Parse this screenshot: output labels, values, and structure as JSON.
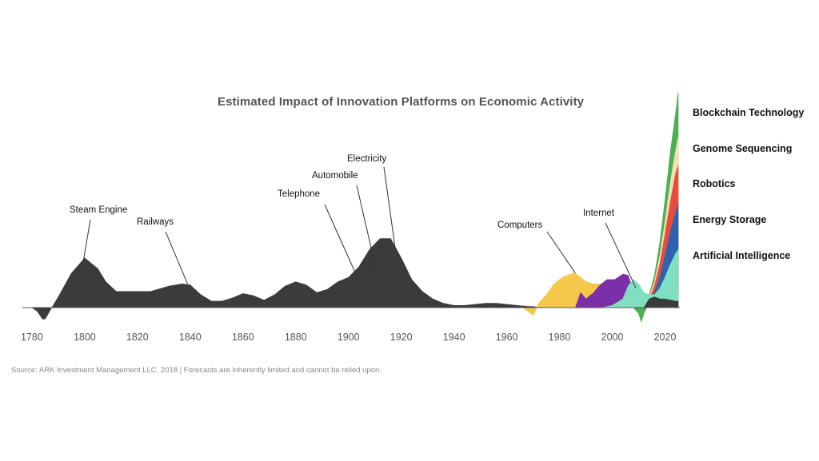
{
  "chart_data": {
    "type": "area",
    "title": "Estimated Impact of Innovation Platforms on Economic Activity",
    "source": "Source: ARK Investment Management LLC, 2018 | Forecasts are inherently limited and cannot be relied upon.",
    "x_ticks": [
      "1780",
      "1800",
      "1820",
      "1840",
      "1860",
      "1880",
      "1900",
      "1920",
      "1940",
      "1960",
      "1980",
      "2000",
      "2020"
    ],
    "xlim": [
      1777,
      2025
    ],
    "ylim": [
      -2,
      10
    ],
    "legend_position": "right",
    "legend": [
      "Blockchain Technology",
      "Genome Sequencing",
      "Robotics",
      "Energy Storage",
      "Artificial Intelligence"
    ],
    "annotations": [
      {
        "text": "Steam Engine",
        "year": 1799,
        "value": 1.8
      },
      {
        "text": "Railways",
        "year": 1839,
        "value": 1.1
      },
      {
        "text": "Telephone",
        "year": 1903,
        "value": 1.5
      },
      {
        "text": "Automobile",
        "year": 1911,
        "value": 1.5
      },
      {
        "text": "Electricity",
        "year": 1918,
        "value": 2.5
      },
      {
        "text": "Computers",
        "year": 1986,
        "value": 1.6
      },
      {
        "text": "Internet",
        "year": 2009,
        "value": 0.9
      }
    ],
    "series": [
      {
        "name": "Steam Engine, Railways, Telephone, Automobile, Electricity",
        "color": "#3b3b3b",
        "x": [
          1780,
          1782,
          1784,
          1785,
          1787,
          1790,
          1795,
          1800,
          1805,
          1808,
          1812,
          1818,
          1825,
          1832,
          1837,
          1840,
          1844,
          1848,
          1852,
          1856,
          1860,
          1864,
          1868,
          1872,
          1876,
          1880,
          1884,
          1888,
          1892,
          1896,
          1900,
          1904,
          1908,
          1912,
          1916,
          1920,
          1924,
          1928,
          1932,
          1936,
          1940,
          1944,
          1948,
          1952,
          1956,
          1960,
          1964,
          1968,
          1970,
          1972
        ],
        "y": [
          0,
          -0.3,
          -0.95,
          -0.95,
          -0.2,
          0.5,
          1.6,
          2.3,
          1.8,
          1.2,
          0.75,
          0.75,
          0.75,
          1.0,
          1.1,
          1.05,
          0.6,
          0.3,
          0.3,
          0.45,
          0.65,
          0.55,
          0.35,
          0.6,
          1.0,
          1.2,
          1.05,
          0.7,
          0.85,
          1.2,
          1.4,
          1.9,
          2.7,
          3.2,
          3.2,
          2.3,
          1.3,
          0.75,
          0.4,
          0.2,
          0.1,
          0.1,
          0.15,
          0.2,
          0.2,
          0.15,
          0.1,
          0.05,
          0.05,
          0
        ]
      },
      {
        "name": "Computers",
        "color": "#f5c84c",
        "x": [
          1966,
          1968,
          1970,
          1971,
          1972,
          1975,
          1978,
          1981,
          1984,
          1986,
          1988,
          1990,
          1993,
          1996,
          1999,
          2002,
          2005,
          2008,
          2011
        ],
        "y": [
          0,
          -0.3,
          -0.65,
          -0.2,
          0.2,
          0.6,
          1.1,
          1.4,
          1.55,
          1.6,
          1.4,
          1.2,
          1.1,
          1.1,
          1.05,
          1.0,
          0.9,
          0.5,
          0
        ]
      },
      {
        "name": "Internet",
        "color": "#7b2fa8",
        "x": [
          1986,
          1988,
          1990,
          1991,
          1993,
          1995,
          1998,
          2001,
          2004,
          2006,
          2008,
          2010,
          2011,
          2013
        ],
        "y": [
          0,
          0.7,
          0.4,
          0.5,
          0.7,
          1.0,
          1.3,
          1.3,
          1.55,
          1.5,
          0.8,
          0.2,
          -0.9,
          0
        ]
      },
      {
        "name": "Blockchain Technology",
        "color": "#4caf50",
        "x": [
          2008,
          2010,
          2011,
          2012,
          2014,
          2016,
          2018,
          2020,
          2022,
          2024,
          2025
        ],
        "y": [
          0,
          -0.5,
          -1.2,
          -0.5,
          0.6,
          1.5,
          3.0,
          5.0,
          7.2,
          9.0,
          10.0
        ]
      },
      {
        "name": "Genome Sequencing",
        "color": "#f5deb3",
        "x": [
          2010,
          2012,
          2014,
          2016,
          2018,
          2020,
          2022,
          2024,
          2025
        ],
        "y": [
          0,
          0.1,
          0.5,
          1.2,
          2.4,
          4.0,
          5.8,
          7.3,
          7.9
        ]
      },
      {
        "name": "Robotics",
        "color": "#e74c3c",
        "x": [
          2010,
          2012,
          2014,
          2016,
          2018,
          2020,
          2022,
          2024,
          2025
        ],
        "y": [
          0,
          0.1,
          0.4,
          1.0,
          2.0,
          3.4,
          4.9,
          6.2,
          6.6
        ]
      },
      {
        "name": "Energy Storage",
        "color": "#2f63b0",
        "x": [
          2010,
          2012,
          2014,
          2016,
          2018,
          2020,
          2022,
          2024,
          2025
        ],
        "y": [
          0,
          0.05,
          0.3,
          0.7,
          1.4,
          2.4,
          3.5,
          4.4,
          4.8
        ]
      },
      {
        "name": "Artificial Intelligence",
        "color": "#7ee0c0",
        "x": [
          1996,
          2000,
          2004,
          2006,
          2008,
          2010,
          2012,
          2014,
          2016,
          2018,
          2020,
          2022,
          2024,
          2025
        ],
        "y": [
          0,
          0.1,
          0.4,
          1.0,
          1.3,
          1.1,
          0.7,
          0.6,
          0.6,
          0.9,
          1.4,
          2.0,
          2.5,
          2.7
        ]
      },
      {
        "name": "",
        "color": "#3b3b3b",
        "x": [
          2012,
          2014,
          2016,
          2018,
          2020,
          2022,
          2024,
          2025
        ],
        "y": [
          0,
          0.4,
          0.5,
          0.4,
          0.4,
          0.35,
          0.3,
          0.3
        ]
      }
    ]
  }
}
